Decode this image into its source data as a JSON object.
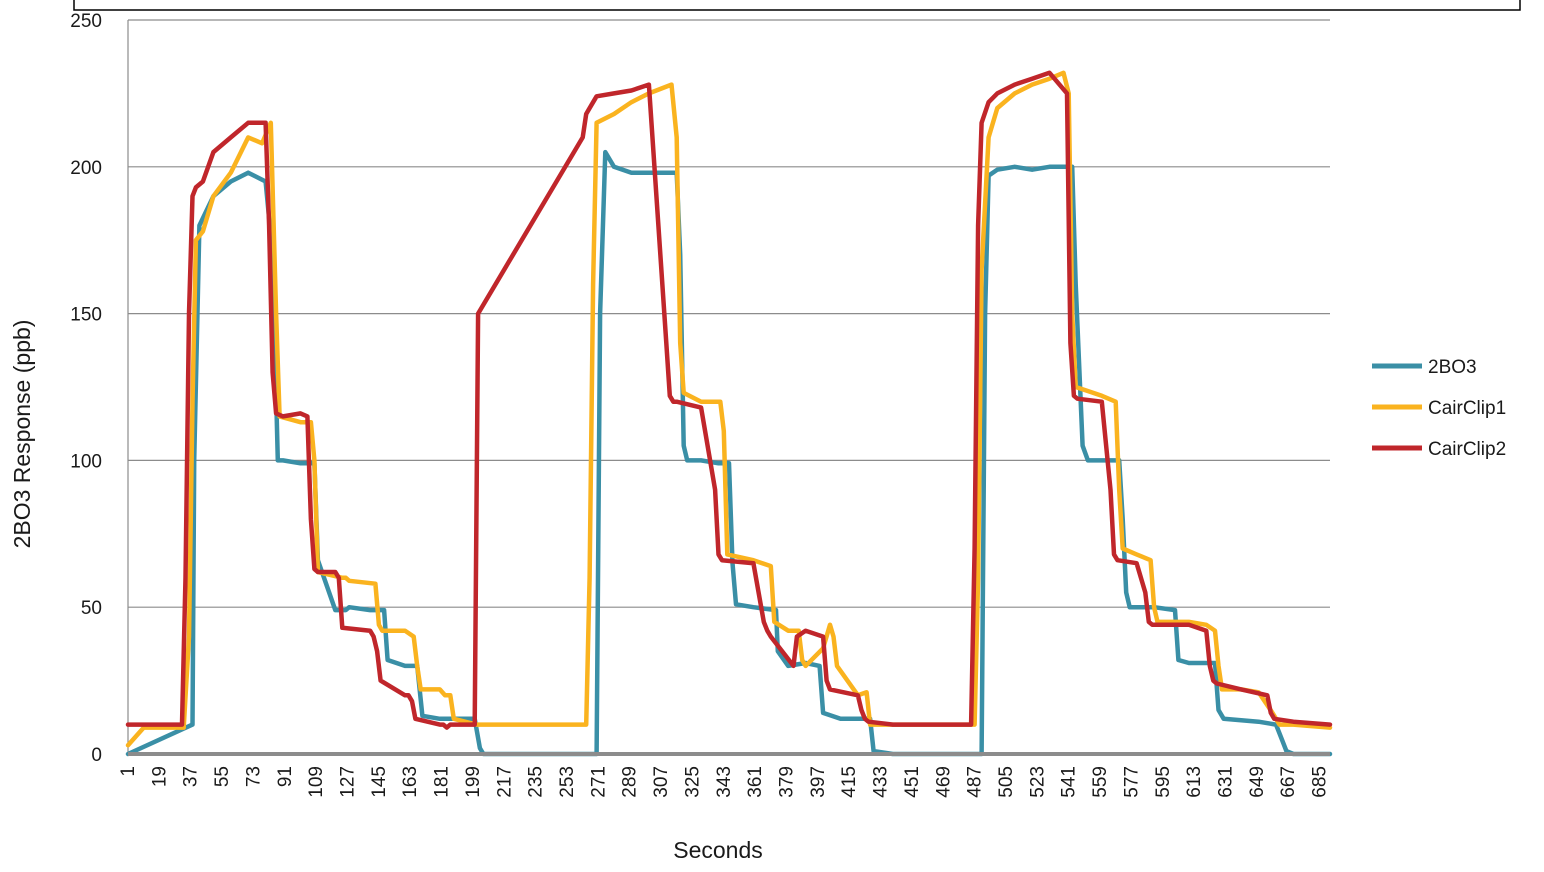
{
  "chart_data": {
    "type": "line",
    "title": "",
    "xlabel": "Seconds",
    "ylabel": "2BO3 Response (ppb)",
    "ylim": [
      0,
      250
    ],
    "yticks": [
      0,
      50,
      100,
      150,
      200,
      250
    ],
    "xlim": [
      1,
      691
    ],
    "xticks": [
      1,
      19,
      37,
      55,
      73,
      91,
      109,
      127,
      145,
      163,
      181,
      199,
      217,
      235,
      253,
      271,
      289,
      307,
      325,
      343,
      361,
      379,
      397,
      415,
      433,
      451,
      469,
      487,
      505,
      523,
      541,
      559,
      577,
      595,
      613,
      631,
      649,
      667,
      685
    ],
    "grid": "horizontal",
    "legend_position": "right",
    "series": [
      {
        "name": "2BO3",
        "color": "#3a8fa6",
        "x": [
          1,
          38,
          39,
          42,
          50,
          60,
          70,
          80,
          84,
          87,
          90,
          100,
          108,
          110,
          120,
          126,
          128,
          140,
          148,
          150,
          160,
          167,
          170,
          180,
          185,
          187,
          200,
          203,
          205,
          270,
          272,
          275,
          280,
          290,
          300,
          316,
          318,
          320,
          322,
          330,
          340,
          346,
          348,
          350,
          360,
          373,
          374,
          380,
          390,
          398,
          400,
          410,
          420,
          427,
          429,
          440,
          491,
          493,
          495,
          500,
          510,
          520,
          530,
          543,
          545,
          549,
          552,
          560,
          570,
          572,
          574,
          576,
          580,
          590,
          602,
          604,
          610,
          625,
          627,
          630,
          650,
          660,
          664,
          666,
          670,
          691
        ],
        "y": [
          0,
          10,
          100,
          180,
          190,
          195,
          198,
          195,
          170,
          100,
          100,
          99,
          99,
          66,
          49,
          49,
          50,
          49,
          49,
          32,
          30,
          30,
          13,
          12,
          12,
          12,
          12,
          2,
          0,
          0,
          150,
          205,
          200,
          198,
          198,
          198,
          170,
          105,
          100,
          100,
          99,
          99,
          65,
          51,
          50,
          49,
          35,
          30,
          31,
          30,
          14,
          12,
          12,
          12,
          1,
          0,
          0,
          150,
          197,
          199,
          200,
          199,
          200,
          200,
          160,
          105,
          100,
          100,
          100,
          80,
          55,
          50,
          50,
          50,
          49,
          32,
          31,
          31,
          15,
          12,
          11,
          10,
          4,
          1,
          0,
          0
        ]
      },
      {
        "name": "CairClip1",
        "color": "#fab31f",
        "x": [
          1,
          10,
          33,
          36,
          38,
          40,
          44,
          50,
          60,
          70,
          78,
          83,
          86,
          88,
          100,
          106,
          108,
          110,
          124,
          126,
          128,
          143,
          145,
          147,
          160,
          165,
          167,
          169,
          180,
          183,
          186,
          188,
          201,
          203,
          205,
          264,
          266,
          268,
          270,
          280,
          290,
          300,
          313,
          316,
          318,
          320,
          330,
          341,
          343,
          345,
          360,
          370,
          372,
          380,
          386,
          388,
          390,
          400,
          404,
          406,
          408,
          420,
          425,
          427,
          429,
          440,
          487,
          489,
          491,
          495,
          500,
          510,
          520,
          530,
          538,
          541,
          543,
          545,
          550,
          560,
          568,
          570,
          572,
          580,
          588,
          590,
          592,
          610,
          620,
          625,
          627,
          629,
          640,
          650,
          658,
          660,
          662,
          670,
          691
        ],
        "y": [
          3,
          9,
          9,
          40,
          120,
          175,
          178,
          190,
          198,
          210,
          208,
          215,
          150,
          115,
          113,
          113,
          100,
          62,
          60,
          60,
          59,
          58,
          44,
          42,
          42,
          40,
          30,
          22,
          22,
          20,
          20,
          12,
          10,
          10,
          10,
          10,
          60,
          160,
          215,
          218,
          222,
          225,
          228,
          210,
          140,
          123,
          120,
          120,
          110,
          68,
          66,
          64,
          45,
          42,
          42,
          32,
          30,
          36,
          44,
          40,
          30,
          20,
          21,
          10,
          10,
          10,
          10,
          60,
          165,
          210,
          220,
          225,
          228,
          230,
          232,
          225,
          150,
          125,
          124,
          122,
          120,
          90,
          70,
          68,
          66,
          50,
          45,
          45,
          44,
          42,
          30,
          22,
          22,
          21,
          14,
          12,
          10,
          10,
          9
        ]
      },
      {
        "name": "CairClip2",
        "color": "#c0262b",
        "x": [
          1,
          10,
          32,
          34,
          36,
          38,
          40,
          44,
          50,
          60,
          70,
          80,
          82,
          84,
          86,
          90,
          100,
          104,
          106,
          108,
          110,
          120,
          122,
          124,
          140,
          142,
          144,
          146,
          160,
          162,
          164,
          166,
          180,
          182,
          184,
          186,
          198,
          200,
          202,
          262,
          264,
          266,
          268,
          270,
          280,
          290,
          300,
          310,
          312,
          314,
          316,
          330,
          338,
          340,
          342,
          360,
          366,
          368,
          370,
          383,
          385,
          390,
          400,
          402,
          404,
          420,
          422,
          424,
          426,
          440,
          485,
          487,
          489,
          491,
          495,
          500,
          510,
          520,
          530,
          540,
          542,
          544,
          546,
          560,
          565,
          567,
          569,
          580,
          585,
          587,
          589,
          610,
          620,
          622,
          624,
          626,
          640,
          655,
          657,
          659,
          670,
          691
        ],
        "y": [
          10,
          10,
          10,
          60,
          150,
          190,
          193,
          195,
          205,
          210,
          215,
          215,
          180,
          130,
          116,
          115,
          116,
          115,
          80,
          63,
          62,
          62,
          60,
          43,
          42,
          40,
          35,
          25,
          20,
          20,
          18,
          12,
          10,
          10,
          9,
          10,
          10,
          10,
          150,
          210,
          218,
          220,
          222,
          224,
          225,
          226,
          228,
          140,
          122,
          120,
          120,
          118,
          90,
          68,
          66,
          65,
          45,
          42,
          40,
          30,
          40,
          42,
          40,
          25,
          22,
          20,
          15,
          12,
          11,
          10,
          10,
          70,
          180,
          215,
          222,
          225,
          228,
          230,
          232,
          225,
          140,
          122,
          121,
          120,
          90,
          68,
          66,
          65,
          55,
          45,
          44,
          44,
          42,
          30,
          25,
          24,
          22,
          20,
          14,
          12,
          11,
          10
        ]
      }
    ]
  }
}
